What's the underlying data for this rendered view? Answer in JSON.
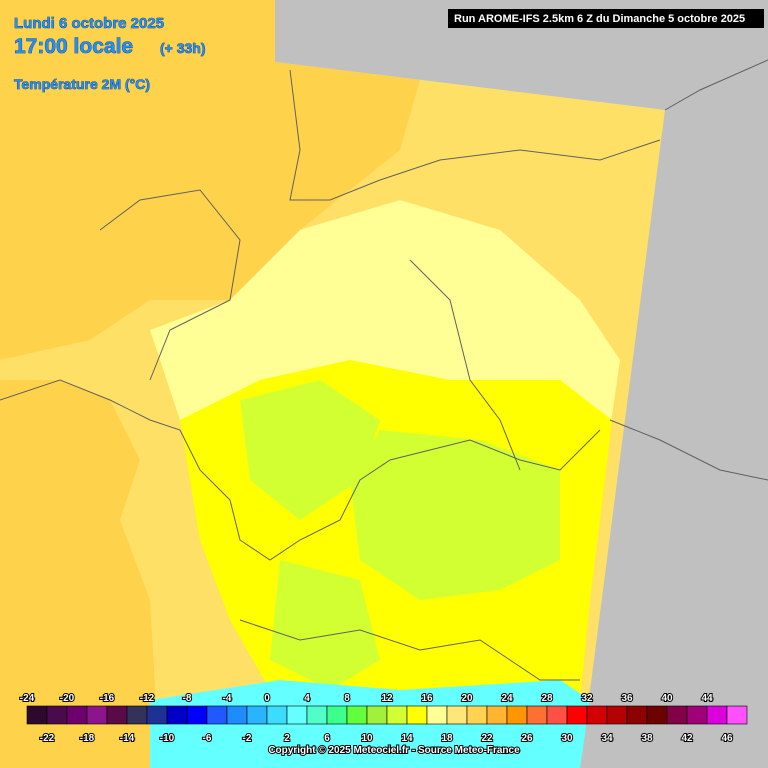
{
  "header": {
    "date": "Lundi 6 octobre 2025",
    "time": "17:00 locale",
    "lead": "(+ 33h)",
    "parameter": "Température 2M (°C)",
    "run": "Run AROME-IFS 2.5km 6 Z du Dimanche 5 octobre 2025"
  },
  "legend": {
    "values": [
      -24,
      -22,
      -20,
      -18,
      -16,
      -14,
      -12,
      -10,
      -8,
      -6,
      -4,
      -2,
      0,
      2,
      4,
      6,
      8,
      10,
      12,
      14,
      16,
      18,
      20,
      22,
      24,
      26,
      28,
      30,
      32,
      34,
      36,
      38,
      40,
      42,
      44,
      46
    ],
    "colors": [
      "#2d0a2d",
      "#4b0a4b",
      "#6e006e",
      "#8c148c",
      "#5a0a46",
      "#32325a",
      "#1e3296",
      "#0000c8",
      "#0000ff",
      "#1e5aff",
      "#1e8cff",
      "#28b4ff",
      "#3cdcff",
      "#64ffff",
      "#50ffc8",
      "#3cff8c",
      "#64ff3c",
      "#a0f03c",
      "#d2ff32",
      "#ffff00",
      "#ffff96",
      "#ffe678",
      "#ffd250",
      "#ffb432",
      "#ff9600",
      "#ff6e32",
      "#ff5046",
      "#ff0000",
      "#d20000",
      "#b40000",
      "#8c0000",
      "#6e0000",
      "#820046",
      "#a00078",
      "#dc00dc",
      "#ff50ff"
    ]
  },
  "footer": {
    "copyright": "Copyright © 2025 Meteociel.fr - Source Meteo-France"
  }
}
